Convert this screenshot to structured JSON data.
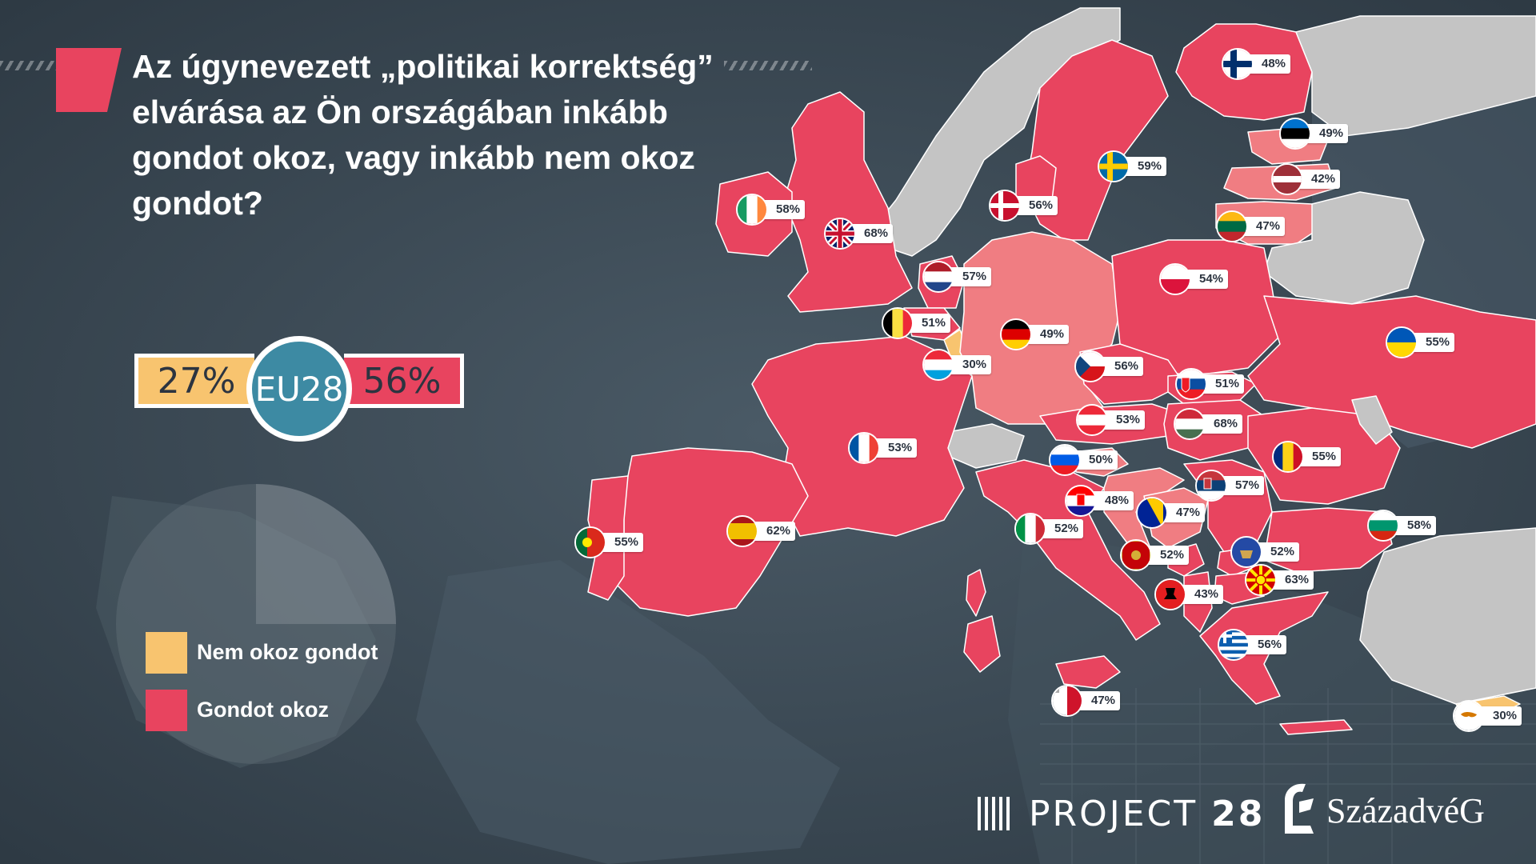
{
  "question": "Az úgynevezett „politikai korrektség” elvárása az Ön országában inkább gondot okoz, vagy inkább nem okoz gondot?",
  "eu": {
    "label": "EU28",
    "no_problem": "27%",
    "problem": "56%"
  },
  "legend": [
    {
      "label": "Nem okoz gondot",
      "color": "#f8c46f"
    },
    {
      "label": "Gondot okoz",
      "color": "#e8445f"
    }
  ],
  "colors": {
    "problem_strong": "#e8445f",
    "problem_light": "#f07d82",
    "no_data": "#c4c4c4",
    "no_problem": "#f8c46f",
    "eu_circle": "#3d8aa3"
  },
  "countries": [
    {
      "code": "IE",
      "value": "58%",
      "flag": "flag-ireland"
    },
    {
      "code": "GB",
      "value": "68%",
      "flag": "flag-united-kingdom"
    },
    {
      "code": "PT",
      "value": "55%",
      "flag": "flag-portugal"
    },
    {
      "code": "ES",
      "value": "62%",
      "flag": "flag-spain"
    },
    {
      "code": "FR",
      "value": "53%",
      "flag": "flag-france"
    },
    {
      "code": "BE",
      "value": "51%",
      "flag": "flag-belgium"
    },
    {
      "code": "NL",
      "value": "57%",
      "flag": "flag-netherlands"
    },
    {
      "code": "LU",
      "value": "30%",
      "flag": "flag-luxembourg"
    },
    {
      "code": "DK",
      "value": "56%",
      "flag": "flag-denmark"
    },
    {
      "code": "SE",
      "value": "59%",
      "flag": "flag-sweden"
    },
    {
      "code": "FI",
      "value": "48%",
      "flag": "flag-finland"
    },
    {
      "code": "EE",
      "value": "49%",
      "flag": "flag-estonia"
    },
    {
      "code": "LV",
      "value": "42%",
      "flag": "flag-latvia"
    },
    {
      "code": "LT",
      "value": "47%",
      "flag": "flag-lithuania"
    },
    {
      "code": "PL",
      "value": "54%",
      "flag": "flag-poland"
    },
    {
      "code": "DE",
      "value": "49%",
      "flag": "flag-germany"
    },
    {
      "code": "CZ",
      "value": "56%",
      "flag": "flag-czechia"
    },
    {
      "code": "SK",
      "value": "51%",
      "flag": "flag-slovakia"
    },
    {
      "code": "AT",
      "value": "53%",
      "flag": "flag-austria"
    },
    {
      "code": "HU",
      "value": "68%",
      "flag": "flag-hungary"
    },
    {
      "code": "UA",
      "value": "55%",
      "flag": "flag-ukraine"
    },
    {
      "code": "RO",
      "value": "55%",
      "flag": "flag-romania"
    },
    {
      "code": "SI",
      "value": "50%",
      "flag": "flag-slovenia"
    },
    {
      "code": "HR",
      "value": "48%",
      "flag": "flag-croatia"
    },
    {
      "code": "RS",
      "value": "57%",
      "flag": "flag-serbia"
    },
    {
      "code": "BA",
      "value": "47%",
      "flag": "flag-bosnia"
    },
    {
      "code": "IT",
      "value": "52%",
      "flag": "flag-italy"
    },
    {
      "code": "ME",
      "value": "52%",
      "flag": "flag-montenegro"
    },
    {
      "code": "XK",
      "value": "52%",
      "flag": "flag-kosovo"
    },
    {
      "code": "MK",
      "value": "63%",
      "flag": "flag-north-macedonia"
    },
    {
      "code": "AL",
      "value": "43%",
      "flag": "flag-albania"
    },
    {
      "code": "BG",
      "value": "58%",
      "flag": "flag-bulgaria"
    },
    {
      "code": "GR",
      "value": "56%",
      "flag": "flag-greece"
    },
    {
      "code": "MT",
      "value": "47%",
      "flag": "flag-malta"
    },
    {
      "code": "CY",
      "value": "30%",
      "flag": "flag-cyprus"
    }
  ],
  "logos": {
    "project28": {
      "word": "PROJECT",
      "number": "28"
    },
    "szazadveg": "SzázadvéG"
  }
}
